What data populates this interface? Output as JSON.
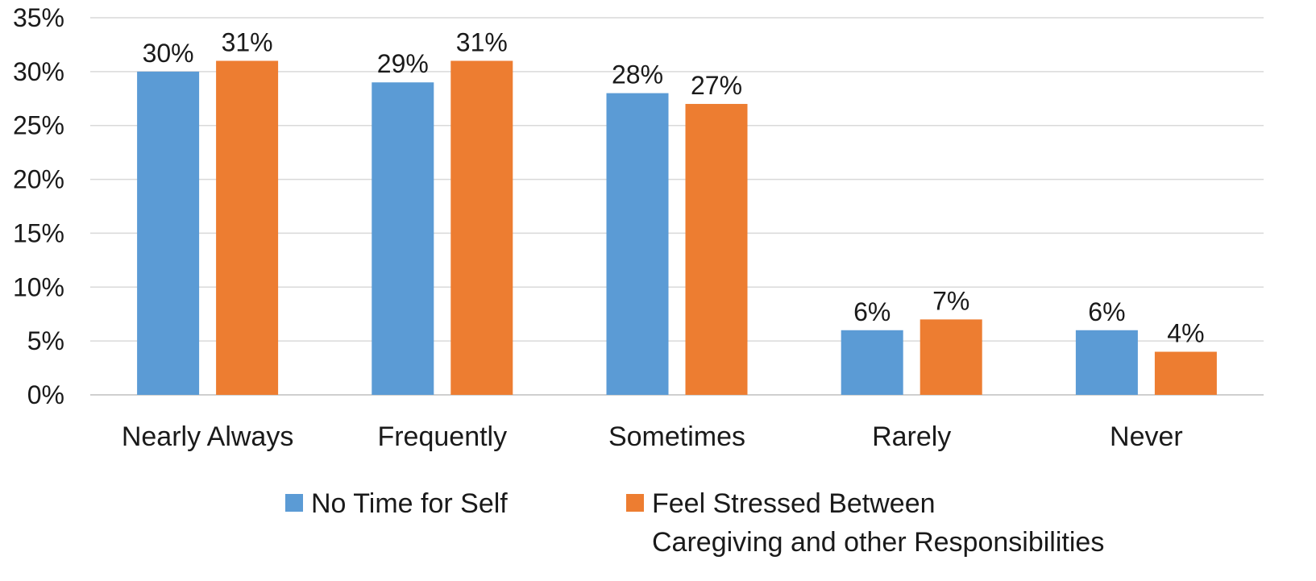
{
  "chart_data": {
    "type": "bar",
    "categories": [
      "Nearly Always",
      "Frequently",
      "Sometimes",
      "Rarely",
      "Never"
    ],
    "series": [
      {
        "name": "No Time for Self",
        "values": [
          30,
          29,
          28,
          6,
          6
        ],
        "labels": [
          "30%",
          "29%",
          "28%",
          "6%",
          "6%"
        ],
        "color": "#5b9bd5"
      },
      {
        "name_lines": [
          "Feel Stressed Between",
          "Caregiving and other Responsibilities"
        ],
        "values": [
          31,
          31,
          27,
          7,
          4
        ],
        "labels": [
          "31%",
          "31%",
          "27%",
          "7%",
          "4%"
        ],
        "color": "#ed7d31"
      }
    ],
    "y_ticks": [
      "0%",
      "5%",
      "10%",
      "15%",
      "20%",
      "25%",
      "30%",
      "35%"
    ],
    "ylim": [
      0,
      35
    ],
    "grid": true,
    "legend_position": "bottom"
  }
}
